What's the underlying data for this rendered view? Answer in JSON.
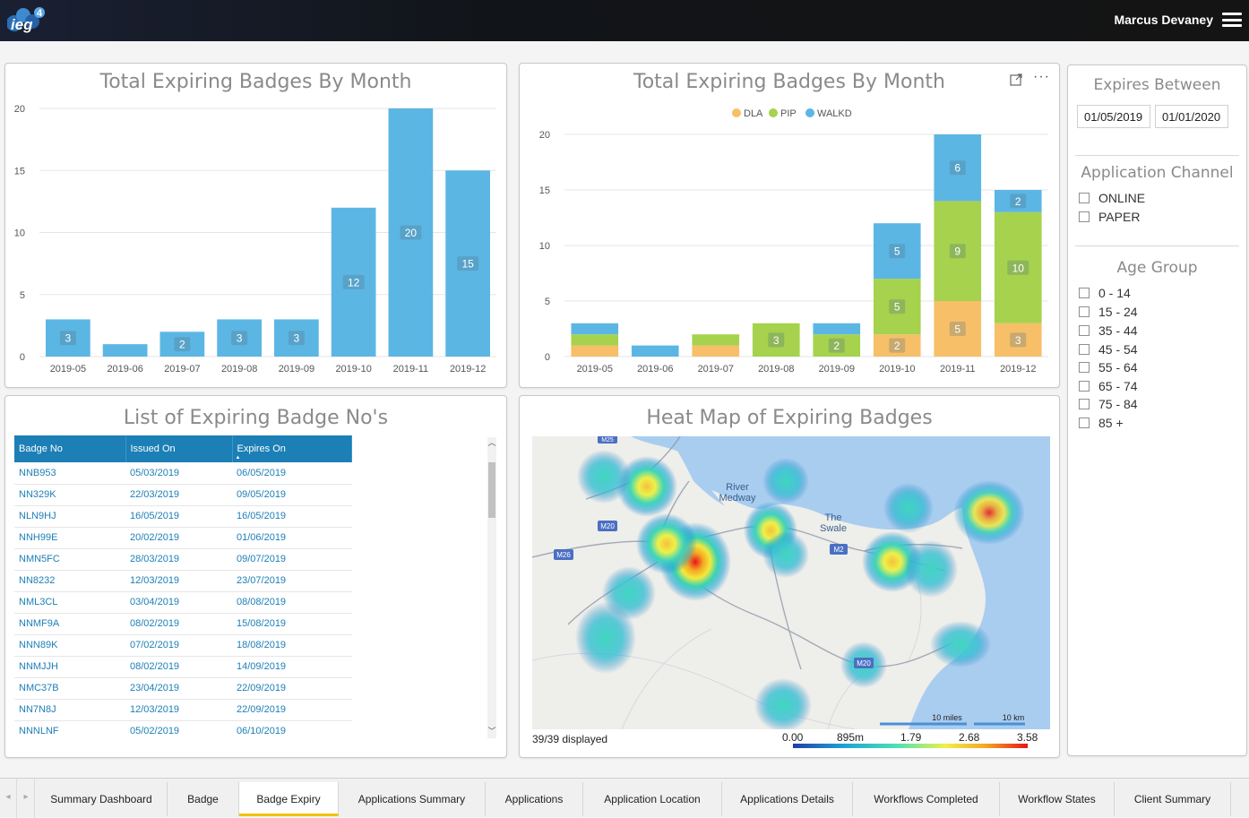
{
  "header": {
    "logo_text": "ieg4",
    "user_name": "Marcus Devaney"
  },
  "colors": {
    "bar_blue": "#5cb6e4",
    "dla": "#f7bf68",
    "pip": "#a6d24d",
    "walkd": "#5cb6e4",
    "table_header": "#1c7fb6",
    "active_tab_underline": "#f2c200"
  },
  "chart1": {
    "title": "Total Expiring Badges By Month"
  },
  "chart2": {
    "title": "Total Expiring Badges By Month",
    "expand_icon": "expand-icon",
    "more_icon": "ellipsis-icon"
  },
  "chart_data": [
    {
      "type": "bar",
      "title": "Total Expiring Badges By Month",
      "categories": [
        "2019-05",
        "2019-06",
        "2019-07",
        "2019-08",
        "2019-09",
        "2019-10",
        "2019-11",
        "2019-12"
      ],
      "values": [
        3,
        1,
        2,
        3,
        3,
        12,
        20,
        15
      ],
      "data_labels": [
        "3",
        "",
        "2",
        "3",
        "3",
        "12",
        "20",
        "15"
      ],
      "yticks": [
        0,
        5,
        10,
        15,
        20
      ],
      "ylim": [
        0,
        20
      ],
      "grid": true
    },
    {
      "type": "bar",
      "stacked": true,
      "title": "Total Expiring Badges By Month",
      "categories": [
        "2019-05",
        "2019-06",
        "2019-07",
        "2019-08",
        "2019-09",
        "2019-10",
        "2019-11",
        "2019-12"
      ],
      "series": [
        {
          "name": "DLA",
          "values": [
            1,
            0,
            1,
            0,
            0,
            2,
            5,
            3
          ],
          "labels": [
            "",
            "",
            "",
            "",
            "",
            "2",
            "5",
            "3"
          ]
        },
        {
          "name": "PIP",
          "values": [
            1,
            0,
            1,
            3,
            2,
            5,
            9,
            10
          ],
          "labels": [
            "",
            "",
            "",
            "3",
            "2",
            "5",
            "9",
            "10"
          ]
        },
        {
          "name": "WALKD",
          "values": [
            1,
            1,
            0,
            0,
            1,
            5,
            6,
            2
          ],
          "labels": [
            "",
            "",
            "",
            "",
            "",
            "5",
            "6",
            "2"
          ]
        }
      ],
      "yticks": [
        0,
        5,
        10,
        15,
        20
      ],
      "ylim": [
        0,
        20
      ],
      "legend": "top-center",
      "grid": true
    }
  ],
  "list": {
    "title": "List of Expiring Badge No's",
    "columns": [
      "Badge No",
      "Issued On",
      "Expires On"
    ],
    "sort_indicator": "▲",
    "rows": [
      [
        "NNB953",
        "05/03/2019",
        "06/05/2019"
      ],
      [
        "NN329K",
        "22/03/2019",
        "09/05/2019"
      ],
      [
        "NLN9HJ",
        "16/05/2019",
        "16/05/2019"
      ],
      [
        "NNH99E",
        "20/02/2019",
        "01/06/2019"
      ],
      [
        "NMN5FC",
        "28/03/2019",
        "09/07/2019"
      ],
      [
        "NN8232",
        "12/03/2019",
        "23/07/2019"
      ],
      [
        "NML3CL",
        "03/04/2019",
        "08/08/2019"
      ],
      [
        "NNMF9A",
        "08/02/2019",
        "15/08/2019"
      ],
      [
        "NNN89K",
        "07/02/2019",
        "18/08/2019"
      ],
      [
        "NNMJJH",
        "08/02/2019",
        "14/09/2019"
      ],
      [
        "NMC37B",
        "23/04/2019",
        "22/09/2019"
      ],
      [
        "NN7N8J",
        "12/03/2019",
        "22/09/2019"
      ],
      [
        "NNNLNF",
        "05/02/2019",
        "06/10/2019"
      ]
    ]
  },
  "heatmap": {
    "title": "Heat Map of Expiring Badges",
    "displayed": "39/39 displayed",
    "scale_labels": [
      "0.00",
      "895m",
      "1.79",
      "2.68",
      "3.58"
    ],
    "map_labels": {
      "river_medway": "River Medway",
      "the_swale": "The Swale"
    },
    "road_labels": [
      "M25",
      "M20",
      "M26",
      "M2",
      "M20"
    ],
    "scale_miles": "10 miles",
    "scale_km": "10 km"
  },
  "sidebar": {
    "expires_title": "Expires Between",
    "date_from": "01/05/2019",
    "date_to": "01/01/2020",
    "channel_title": "Application Channel",
    "channels": [
      "ONLINE",
      "PAPER"
    ],
    "age_title": "Age Group",
    "ages": [
      "0 - 14",
      "15 - 24",
      "35 - 44",
      "45 - 54",
      "55 - 64",
      "65 - 74",
      "75 - 84",
      "85 +"
    ]
  },
  "tabs": {
    "prev_icon": "chevron-left-icon",
    "next_icon": "chevron-right-icon",
    "items": [
      "Summary Dashboard",
      "Badge",
      "Badge Expiry",
      "Applications Summary",
      "Applications",
      "Application Location",
      "Applications Details",
      "Workflows Completed",
      "Workflow States",
      "Client Summary"
    ],
    "active": "Badge Expiry"
  }
}
